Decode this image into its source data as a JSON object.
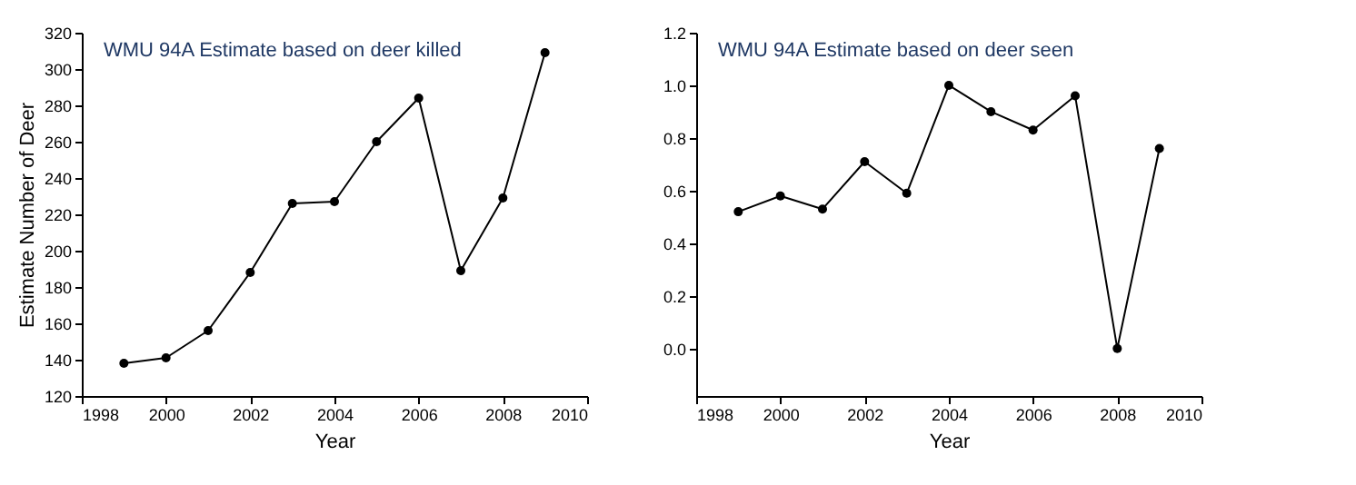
{
  "chart_data": [
    {
      "type": "line",
      "title": "WMU 94A Estimate based on deer killed",
      "xlabel": "Year",
      "ylabel": "Estimate Number of Deer",
      "marker": "circle",
      "line_style": "solid",
      "grid": false,
      "x": [
        1999,
        2000,
        2001,
        2002,
        2003,
        2004,
        2005,
        2006,
        2007,
        2008,
        2009
      ],
      "series": [
        {
          "color": "#000000",
          "values": [
            138,
            141,
            156,
            188,
            226,
            227,
            260,
            284,
            189,
            229,
            309
          ]
        }
      ],
      "xlim": [
        1998,
        2010
      ],
      "xticks": [
        1998,
        2000,
        2002,
        2004,
        2006,
        2008,
        2010
      ],
      "ylim": [
        120,
        320
      ],
      "yticks": [
        120,
        140,
        160,
        180,
        200,
        220,
        240,
        260,
        280,
        300,
        320
      ]
    },
    {
      "type": "line",
      "title": "WMU 94A Estimate based on deer seen",
      "xlabel": "Year",
      "marker": "circle",
      "line_style": "solid",
      "grid": false,
      "x": [
        1999,
        2000,
        2001,
        2002,
        2003,
        2004,
        2005,
        2006,
        2007,
        2008,
        2009
      ],
      "series": [
        {
          "color": "#000000",
          "values": [
            0.52,
            0.58,
            0.53,
            0.71,
            0.59,
            1.0,
            0.9,
            0.83,
            0.96,
            0.0,
            0.76
          ]
        }
      ],
      "xlim": [
        1998,
        2010
      ],
      "xticks": [
        1998,
        2000,
        2002,
        2004,
        2006,
        2008,
        2010
      ],
      "ylim": [
        -0.18,
        1.2
      ],
      "yticks": [
        {
          "value": 0,
          "label": "0.0"
        },
        {
          "value": 0.2,
          "label": "0.2"
        },
        {
          "value": 0.4,
          "label": "0.4"
        },
        {
          "value": 0.6,
          "label": "0.6"
        },
        {
          "value": 0.8,
          "label": "0.8"
        },
        {
          "value": 1.0,
          "label": "1.0"
        },
        {
          "value": 1.2,
          "label": "1.2"
        }
      ]
    }
  ]
}
